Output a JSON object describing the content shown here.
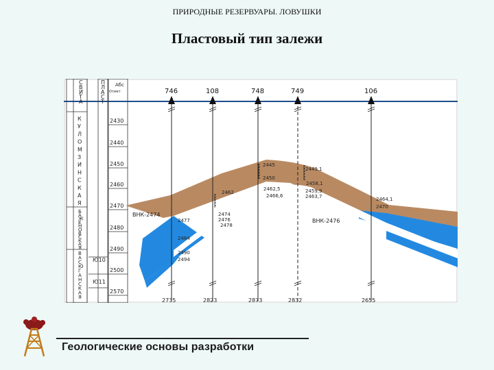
{
  "header": "ПРИРОДНЫЕ РЕЗЕРВУАРЫ. ЛОВУШКИ",
  "title": "Пластовый тип залежи",
  "section": {
    "col_svita": [
      "С",
      "В",
      "И",
      "Т",
      "А"
    ],
    "col_plast": [
      "П",
      "Л",
      "А",
      "С",
      "Т"
    ],
    "col_abs": "Абс",
    "col_abs_sub": "Отмет",
    "suite_kulomzin": [
      "К",
      "У",
      "Л",
      "О",
      "М",
      "З",
      "И",
      "Н",
      "С",
      "К",
      "А",
      "Я"
    ],
    "suite_bazhenov": [
      "Б",
      "А",
      "Ж",
      "Е",
      "Н",
      "О",
      "В",
      "С",
      "К",
      "А",
      "Я"
    ],
    "suite_vasyugan": [
      "В",
      "А",
      "С",
      "Ю",
      "Г",
      "А",
      "Н",
      "С",
      "К",
      "А",
      "Я"
    ],
    "plasts": [
      "Ю10",
      "Ю11"
    ],
    "depth_scale": [
      "2430",
      "2440",
      "2450",
      "2460",
      "2470",
      "2480",
      "2490",
      "2500",
      "2570"
    ],
    "wells": [
      "746",
      "108",
      "748",
      "749",
      "106"
    ],
    "bottom_depths": [
      "2735",
      "2823",
      "2873",
      "2832",
      "2655"
    ],
    "vnk_labels": [
      "ВНК-2474",
      "ВНК-2476"
    ],
    "depth_labels": [
      "2477",
      "2484",
      "2490",
      "2494",
      "2474",
      "2476",
      "2478",
      "2462",
      "2445",
      "2450",
      "2462,5",
      "2466,6",
      "2449,1",
      "2458,1",
      "2459,9",
      "2463,7",
      "2464,1",
      "2470"
    ],
    "colors": {
      "oil": "#b98a62",
      "water": "#2389e0",
      "grid": "#1f4d8c"
    }
  },
  "footer": "Геологические основы разработки"
}
